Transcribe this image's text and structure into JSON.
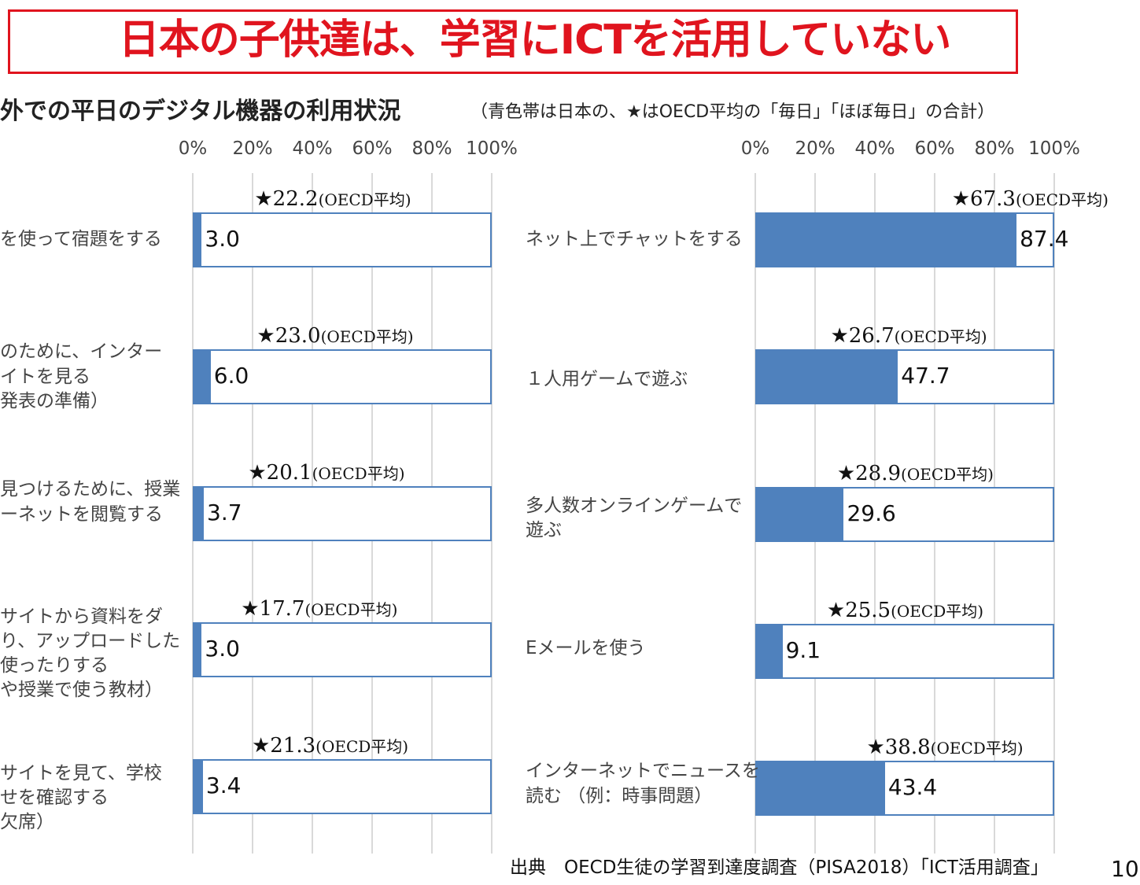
{
  "title": "日本の子供達は、学習にICTを活用していない",
  "subtitle": "外での平日のデジタル機器の利用状況",
  "note": "（青色帯は日本の、★はOECD平均の「毎日」「ほぼ毎日」の合計）",
  "source": "出典　OECD生徒の学習到達度調査（PISA2018）「ICT活用調査」",
  "page_number": "10",
  "colors": {
    "japan_bar": "#4f81bd",
    "title": "#e0141e"
  },
  "chart_data": [
    {
      "type": "bar",
      "orientation": "horizontal",
      "xlim": [
        0,
        100
      ],
      "tick_labels": [
        "0%",
        "20%",
        "40%",
        "60%",
        "80%",
        "100%"
      ],
      "grid": true,
      "oecd_suffix": "(OECD平均)",
      "categories": [
        [
          "を使って宿題をする"
        ],
        [
          "のために、インター",
          "イトを見る",
          "発表の準備）"
        ],
        [
          "見つけるために、授業",
          "ーネットを閲覧する"
        ],
        [
          "サイトから資料をダ",
          "り、アップロードした",
          "使ったりする",
          "や授業で使う教材）"
        ],
        [
          "サイトを見て、学校",
          "せを確認する",
          "欠席）"
        ]
      ],
      "japan": [
        "3.0",
        "6.0",
        "3.7",
        "3.0",
        "3.4"
      ],
      "oecd_avg": [
        "22.2",
        "23.0",
        "20.1",
        "17.7",
        "21.3"
      ]
    },
    {
      "type": "bar",
      "orientation": "horizontal",
      "xlim": [
        0,
        100
      ],
      "tick_labels": [
        "0%",
        "20%",
        "40%",
        "60%",
        "80%",
        "100%"
      ],
      "grid": true,
      "oecd_suffix": "(OECD平均)",
      "categories": [
        [
          "ネット上でチャットをする"
        ],
        [
          "１人用ゲームで遊ぶ"
        ],
        [
          "多人数オンラインゲームで",
          "遊ぶ"
        ],
        [
          "Eメールを使う"
        ],
        [
          "インターネットでニュースを",
          "読む （例：時事問題）"
        ]
      ],
      "japan": [
        "87.4",
        "47.7",
        "29.6",
        "9.1",
        "43.4"
      ],
      "oecd_avg": [
        "67.3",
        "26.7",
        "28.9",
        "25.5",
        "38.8"
      ]
    }
  ]
}
